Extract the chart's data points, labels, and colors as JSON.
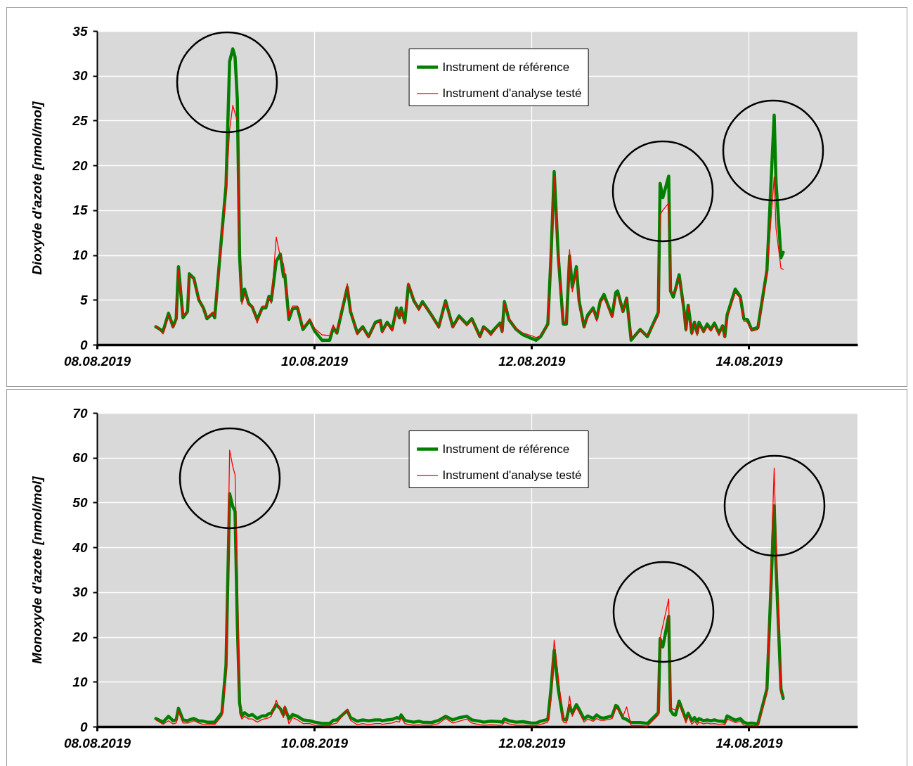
{
  "chart_data": [
    {
      "type": "line",
      "ylabel": "Dioxyde d'azote [nmol/mol]",
      "x": [
        "2019-08-08T13:00",
        "2019-08-08T14:36",
        "2019-08-08T15:48",
        "2019-08-08T16:48",
        "2019-08-08T17:30",
        "2019-08-08T18:00",
        "2019-08-08T19:00",
        "2019-08-08T20:00",
        "2019-08-08T20:24",
        "2019-08-08T21:24",
        "2019-08-08T22:30",
        "2019-08-08T23:30",
        "2019-08-09T00:18",
        "2019-08-09T01:36",
        "2019-08-09T02:00",
        "2019-08-09T03:36",
        "2019-08-09T04:30",
        "2019-08-09T05:18",
        "2019-08-09T06:00",
        "2019-08-09T06:30",
        "2019-08-09T07:00",
        "2019-08-09T07:30",
        "2019-08-09T08:00",
        "2019-08-09T08:36",
        "2019-08-09T09:30",
        "2019-08-09T10:18",
        "2019-08-09T11:24",
        "2019-08-09T12:30",
        "2019-08-09T13:18",
        "2019-08-09T14:00",
        "2019-08-09T14:30",
        "2019-08-09T15:36",
        "2019-08-09T16:30",
        "2019-08-09T17:12",
        "2019-08-09T17:30",
        "2019-08-09T18:24",
        "2019-08-09T19:12",
        "2019-08-09T20:18",
        "2019-08-09T21:30",
        "2019-08-09T23:00",
        "2019-08-10T00:06",
        "2019-08-10T01:42",
        "2019-08-10T03:24",
        "2019-08-10T04:12",
        "2019-08-10T05:00",
        "2019-08-10T07:18",
        "2019-08-10T08:00",
        "2019-08-10T09:30",
        "2019-08-10T10:42",
        "2019-08-10T12:00",
        "2019-08-10T13:30",
        "2019-08-10T14:36",
        "2019-08-10T15:00",
        "2019-08-10T16:06",
        "2019-08-10T17:12",
        "2019-08-10T18:12",
        "2019-08-10T18:48",
        "2019-08-10T19:12",
        "2019-08-10T20:00",
        "2019-08-10T20:48",
        "2019-08-10T22:00",
        "2019-08-10T23:06",
        "2019-08-10T23:54",
        "2019-08-11T01:54",
        "2019-08-11T03:30",
        "2019-08-11T05:00",
        "2019-08-11T06:36",
        "2019-08-11T08:00",
        "2019-08-11T09:42",
        "2019-08-11T10:48",
        "2019-08-11T12:36",
        "2019-08-11T13:24",
        "2019-08-11T15:00",
        "2019-08-11T17:00",
        "2019-08-11T17:30",
        "2019-08-11T18:00",
        "2019-08-11T19:00",
        "2019-08-11T20:36",
        "2019-08-11T22:06",
        "2019-08-12T00:00",
        "2019-08-12T01:00",
        "2019-08-12T02:00",
        "2019-08-12T03:36",
        "2019-08-12T04:18",
        "2019-08-12T05:00",
        "2019-08-12T05:54",
        "2019-08-12T07:00",
        "2019-08-12T07:42",
        "2019-08-12T08:24",
        "2019-08-12T09:00",
        "2019-08-12T09:54",
        "2019-08-12T10:30",
        "2019-08-12T11:36",
        "2019-08-12T12:24",
        "2019-08-12T13:36",
        "2019-08-12T14:24",
        "2019-08-12T15:12",
        "2019-08-12T16:00",
        "2019-08-12T17:48",
        "2019-08-12T18:36",
        "2019-08-12T19:00",
        "2019-08-12T20:12",
        "2019-08-12T21:00",
        "2019-08-12T22:00",
        "2019-08-13T00:00",
        "2019-08-13T01:36",
        "2019-08-13T04:00",
        "2019-08-13T04:24",
        "2019-08-13T05:00",
        "2019-08-13T06:18",
        "2019-08-13T06:42",
        "2019-08-13T07:18",
        "2019-08-13T07:48",
        "2019-08-13T08:36",
        "2019-08-13T09:42",
        "2019-08-13T10:06",
        "2019-08-13T10:36",
        "2019-08-13T11:24",
        "2019-08-13T12:00",
        "2019-08-13T12:36",
        "2019-08-13T13:00",
        "2019-08-13T14:00",
        "2019-08-13T14:48",
        "2019-08-13T15:36",
        "2019-08-13T16:24",
        "2019-08-13T17:24",
        "2019-08-13T18:12",
        "2019-08-13T18:42",
        "2019-08-13T19:12",
        "2019-08-13T21:00",
        "2019-08-13T22:06",
        "2019-08-13T22:54",
        "2019-08-13T23:42",
        "2019-08-14T00:36",
        "2019-08-14T02:00",
        "2019-08-14T04:00",
        "2019-08-14T05:36",
        "2019-08-14T06:00",
        "2019-08-14T07:06",
        "2019-08-14T07:36"
      ],
      "series": [
        {
          "name": "Instrument de référence",
          "color": "#008000",
          "values": [
            2.0,
            1.5,
            3.5,
            2.0,
            2.9,
            8.7,
            3.0,
            3.7,
            7.9,
            7.4,
            5.0,
            4.1,
            2.9,
            3.5,
            3.0,
            12.5,
            17.7,
            31.6,
            33.0,
            32.1,
            27.4,
            9.9,
            4.9,
            6.2,
            4.6,
            4.2,
            2.8,
            4.1,
            4.1,
            5.4,
            4.9,
            9.3,
            10.1,
            7.6,
            7.8,
            2.8,
            4.0,
            4.1,
            1.7,
            2.7,
            1.5,
            0.5,
            0.5,
            1.9,
            1.3,
            6.4,
            3.7,
            1.3,
            2.0,
            0.9,
            2.5,
            2.7,
            1.5,
            2.5,
            1.7,
            4.1,
            3.0,
            4.1,
            2.5,
            6.7,
            4.9,
            4.0,
            4.8,
            3.3,
            2.0,
            4.9,
            2.0,
            3.2,
            2.3,
            2.9,
            0.9,
            2.0,
            1.3,
            2.4,
            1.5,
            4.8,
            2.8,
            1.7,
            1.1,
            0.7,
            0.5,
            0.9,
            2.3,
            9.9,
            19.3,
            9.9,
            2.3,
            2.3,
            9.9,
            6.4,
            8.7,
            4.9,
            2.0,
            3.3,
            4.1,
            2.9,
            4.9,
            5.6,
            3.2,
            5.8,
            6.0,
            3.7,
            5.2,
            0.5,
            1.7,
            0.9,
            3.6,
            18.0,
            16.4,
            18.8,
            6.0,
            5.3,
            6.2,
            7.8,
            3.8,
            1.7,
            4.4,
            1.3,
            2.5,
            1.3,
            2.5,
            1.5,
            2.3,
            1.7,
            2.4,
            1.3,
            2.1,
            0.9,
            3.3,
            6.2,
            5.4,
            2.9,
            2.8,
            1.7,
            1.9,
            8.3,
            25.6,
            18.2,
            9.7,
            10.3
          ]
        },
        {
          "name": "Instrument d'analyse testé",
          "color": "#ff0000",
          "values": [
            2.1,
            1.2,
            3.3,
            1.9,
            2.7,
            8.4,
            3.2,
            3.6,
            7.8,
            7.2,
            5.1,
            4.0,
            3.0,
            3.6,
            3.2,
            12.0,
            16.8,
            24.0,
            26.7,
            25.8,
            25.0,
            8.5,
            4.5,
            5.8,
            4.4,
            4.3,
            2.4,
            4.3,
            4.3,
            5.3,
            4.6,
            12.0,
            9.8,
            9.0,
            7.9,
            3.0,
            4.3,
            4.3,
            1.9,
            2.9,
            1.8,
            1.1,
            1.0,
            2.2,
            1.3,
            6.8,
            3.9,
            1.1,
            1.8,
            0.8,
            2.3,
            2.6,
            1.3,
            2.3,
            1.5,
            4.0,
            2.9,
            3.9,
            2.3,
            6.9,
            5.0,
            3.8,
            4.6,
            3.3,
            1.8,
            4.8,
            1.9,
            3.0,
            2.1,
            2.7,
            0.8,
            2.0,
            1.0,
            2.3,
            1.3,
            4.6,
            2.9,
            1.8,
            1.3,
            1.0,
            0.8,
            1.0,
            2.2,
            10.5,
            18.8,
            9.5,
            2.5,
            2.5,
            10.6,
            5.9,
            8.3,
            4.6,
            2.0,
            3.0,
            3.9,
            2.6,
            4.6,
            5.2,
            3.0,
            5.4,
            5.6,
            3.6,
            5.1,
            0.7,
            1.6,
            1.0,
            3.2,
            14.5,
            15.0,
            15.8,
            6.1,
            5.7,
            6.0,
            7.5,
            3.6,
            1.5,
            4.3,
            1.1,
            2.3,
            1.0,
            2.2,
            1.3,
            2.0,
            1.5,
            2.1,
            1.0,
            2.0,
            0.8,
            3.0,
            5.8,
            5.2,
            2.6,
            2.5,
            1.5,
            1.7,
            8.0,
            18.7,
            13.0,
            8.5,
            8.4
          ]
        }
      ],
      "xlim": [
        "2019-08-08",
        "2019-08-15"
      ],
      "xticks": [
        {
          "value": "2019-08-08",
          "label": "08.08.2019"
        },
        {
          "value": "2019-08-10",
          "label": "10.08.2019"
        },
        {
          "value": "2019-08-12",
          "label": "12.08.2019"
        },
        {
          "value": "2019-08-14",
          "label": "14.08.2019"
        }
      ],
      "ylim": [
        0,
        35
      ],
      "yticks": [
        0,
        5,
        10,
        15,
        20,
        25,
        30,
        35
      ],
      "grid": true,
      "legend": "top"
    },
    {
      "type": "line",
      "ylabel": "Monoxyde d'azote [nmol/mol]",
      "x": [
        "2019-08-08T13:00",
        "2019-08-08T14:36",
        "2019-08-08T15:48",
        "2019-08-08T16:48",
        "2019-08-08T17:30",
        "2019-08-08T18:00",
        "2019-08-08T19:00",
        "2019-08-08T20:00",
        "2019-08-08T20:24",
        "2019-08-08T21:24",
        "2019-08-08T22:30",
        "2019-08-08T23:30",
        "2019-08-09T00:18",
        "2019-08-09T01:36",
        "2019-08-09T02:00",
        "2019-08-09T03:36",
        "2019-08-09T04:30",
        "2019-08-09T05:18",
        "2019-08-09T06:00",
        "2019-08-09T06:30",
        "2019-08-09T07:00",
        "2019-08-09T07:30",
        "2019-08-09T08:00",
        "2019-08-09T08:36",
        "2019-08-09T09:30",
        "2019-08-09T10:18",
        "2019-08-09T11:24",
        "2019-08-09T12:30",
        "2019-08-09T13:18",
        "2019-08-09T14:00",
        "2019-08-09T14:30",
        "2019-08-09T15:36",
        "2019-08-09T16:30",
        "2019-08-09T17:12",
        "2019-08-09T17:30",
        "2019-08-09T18:24",
        "2019-08-09T19:12",
        "2019-08-09T20:18",
        "2019-08-09T21:30",
        "2019-08-09T23:00",
        "2019-08-10T00:06",
        "2019-08-10T01:42",
        "2019-08-10T03:24",
        "2019-08-10T04:12",
        "2019-08-10T05:00",
        "2019-08-10T07:18",
        "2019-08-10T08:00",
        "2019-08-10T09:30",
        "2019-08-10T10:42",
        "2019-08-10T12:00",
        "2019-08-10T13:30",
        "2019-08-10T14:36",
        "2019-08-10T15:00",
        "2019-08-10T16:06",
        "2019-08-10T17:12",
        "2019-08-10T18:12",
        "2019-08-10T18:48",
        "2019-08-10T19:12",
        "2019-08-10T20:00",
        "2019-08-10T20:48",
        "2019-08-10T22:00",
        "2019-08-10T23:06",
        "2019-08-10T23:54",
        "2019-08-11T01:54",
        "2019-08-11T03:30",
        "2019-08-11T05:00",
        "2019-08-11T06:36",
        "2019-08-11T08:00",
        "2019-08-11T09:42",
        "2019-08-11T10:48",
        "2019-08-11T12:36",
        "2019-08-11T13:24",
        "2019-08-11T15:00",
        "2019-08-11T17:00",
        "2019-08-11T17:30",
        "2019-08-11T18:00",
        "2019-08-11T19:00",
        "2019-08-11T20:36",
        "2019-08-11T22:06",
        "2019-08-12T00:00",
        "2019-08-12T01:00",
        "2019-08-12T02:00",
        "2019-08-12T03:36",
        "2019-08-12T04:18",
        "2019-08-12T05:00",
        "2019-08-12T05:54",
        "2019-08-12T07:00",
        "2019-08-12T07:42",
        "2019-08-12T08:24",
        "2019-08-12T09:00",
        "2019-08-12T09:54",
        "2019-08-12T10:30",
        "2019-08-12T11:36",
        "2019-08-12T12:24",
        "2019-08-12T13:36",
        "2019-08-12T14:24",
        "2019-08-12T15:12",
        "2019-08-12T16:00",
        "2019-08-12T17:48",
        "2019-08-12T18:36",
        "2019-08-12T19:00",
        "2019-08-12T20:12",
        "2019-08-12T21:00",
        "2019-08-12T22:00",
        "2019-08-13T00:00",
        "2019-08-13T01:36",
        "2019-08-13T04:00",
        "2019-08-13T04:24",
        "2019-08-13T05:00",
        "2019-08-13T06:18",
        "2019-08-13T06:42",
        "2019-08-13T07:18",
        "2019-08-13T07:48",
        "2019-08-13T08:36",
        "2019-08-13T09:42",
        "2019-08-13T10:06",
        "2019-08-13T10:36",
        "2019-08-13T11:24",
        "2019-08-13T12:00",
        "2019-08-13T12:36",
        "2019-08-13T13:00",
        "2019-08-13T14:00",
        "2019-08-13T14:48",
        "2019-08-13T15:36",
        "2019-08-13T16:24",
        "2019-08-13T17:24",
        "2019-08-13T18:12",
        "2019-08-13T18:42",
        "2019-08-13T19:12",
        "2019-08-13T21:00",
        "2019-08-13T22:06",
        "2019-08-13T22:54",
        "2019-08-13T23:42",
        "2019-08-14T00:36",
        "2019-08-14T02:00",
        "2019-08-14T04:00",
        "2019-08-14T05:36",
        "2019-08-14T06:00",
        "2019-08-14T07:06",
        "2019-08-14T07:36"
      ],
      "series": [
        {
          "name": "Instrument de référence",
          "color": "#008000",
          "values": [
            1.8,
            1.0,
            2.3,
            1.3,
            1.5,
            4.1,
            1.5,
            1.3,
            1.5,
            1.8,
            1.3,
            1.2,
            1.0,
            1.0,
            1.0,
            3.1,
            13.6,
            52.0,
            49.1,
            48.0,
            23.0,
            5.2,
            2.4,
            3.1,
            2.4,
            2.7,
            1.8,
            2.4,
            2.4,
            2.9,
            3.0,
            4.9,
            4.0,
            2.6,
            4.2,
            1.7,
            2.7,
            2.3,
            1.5,
            1.3,
            1.0,
            0.7,
            0.7,
            1.4,
            1.5,
            3.6,
            2.0,
            1.2,
            1.5,
            1.3,
            1.5,
            1.5,
            1.3,
            1.5,
            1.6,
            2.0,
            1.8,
            2.6,
            1.4,
            1.2,
            1.0,
            1.2,
            1.0,
            0.9,
            1.4,
            2.3,
            1.5,
            2.0,
            2.3,
            1.5,
            1.2,
            1.0,
            1.2,
            1.1,
            1.0,
            1.7,
            1.3,
            1.0,
            1.1,
            0.8,
            0.8,
            1.2,
            1.6,
            8.4,
            17.0,
            8.4,
            1.6,
            1.5,
            4.7,
            3.0,
            4.9,
            3.9,
            1.7,
            2.4,
            1.8,
            2.6,
            2.0,
            1.9,
            2.4,
            4.7,
            4.5,
            1.9,
            1.6,
            0.9,
            0.9,
            0.7,
            3.1,
            19.6,
            17.8,
            24.6,
            3.6,
            2.7,
            2.6,
            5.7,
            2.7,
            1.6,
            3.0,
            1.3,
            2.0,
            1.2,
            1.8,
            1.3,
            1.5,
            1.3,
            1.5,
            1.2,
            1.2,
            1.0,
            2.4,
            1.4,
            1.8,
            1.0,
            0.7,
            0.8,
            0.6,
            8.4,
            49.3,
            36.2,
            8.4,
            6.3
          ]
        },
        {
          "name": "Instrument d'analyse testé",
          "color": "#ff0000",
          "values": [
            1.5,
            0.5,
            1.3,
            0.6,
            0.8,
            3.5,
            0.8,
            0.8,
            0.9,
            1.3,
            0.8,
            0.5,
            0.5,
            0.4,
            0.4,
            2.4,
            11.5,
            61.7,
            58.0,
            56.2,
            34.0,
            3.0,
            1.7,
            2.3,
            1.7,
            1.7,
            1.0,
            1.6,
            1.8,
            2.0,
            2.3,
            5.9,
            3.5,
            2.0,
            4.7,
            0.6,
            2.0,
            1.5,
            0.7,
            0.7,
            0.3,
            0.2,
            0.2,
            0.6,
            0.8,
            3.9,
            1.4,
            0.4,
            0.7,
            0.4,
            0.7,
            0.7,
            0.5,
            0.7,
            0.8,
            1.2,
            1.0,
            2.0,
            0.7,
            0.5,
            0.3,
            0.4,
            0.3,
            0.3,
            0.7,
            1.8,
            0.8,
            1.2,
            1.7,
            0.8,
            0.4,
            0.3,
            0.4,
            0.3,
            0.3,
            1.0,
            0.6,
            0.3,
            0.3,
            0.2,
            0.2,
            0.5,
            1.0,
            6.0,
            19.3,
            11.0,
            1.0,
            0.8,
            6.8,
            2.3,
            4.3,
            3.2,
            1.0,
            1.7,
            1.2,
            1.8,
            1.4,
            1.4,
            1.8,
            4.2,
            3.9,
            2.3,
            4.4,
            0.2,
            0.2,
            0.1,
            2.6,
            19.8,
            22.5,
            28.5,
            4.1,
            3.9,
            3.7,
            5.0,
            2.0,
            0.8,
            2.5,
            0.5,
            1.2,
            0.4,
            1.0,
            0.6,
            0.8,
            0.6,
            0.7,
            0.5,
            0.6,
            0.4,
            1.7,
            0.9,
            1.2,
            0.3,
            0.2,
            0.2,
            0.2,
            7.5,
            57.7,
            41.5,
            7.6,
            6.8
          ]
        }
      ],
      "xlim": [
        "2019-08-08",
        "2019-08-15"
      ],
      "xticks": [
        {
          "value": "2019-08-08",
          "label": "08.08.2019"
        },
        {
          "value": "2019-08-10",
          "label": "10.08.2019"
        },
        {
          "value": "2019-08-12",
          "label": "12.08.2019"
        },
        {
          "value": "2019-08-14",
          "label": "14.08.2019"
        }
      ],
      "ylim": [
        0,
        70
      ],
      "yticks": [
        0,
        10,
        20,
        30,
        40,
        50,
        60,
        70
      ],
      "grid": true,
      "legend": "top"
    }
  ]
}
